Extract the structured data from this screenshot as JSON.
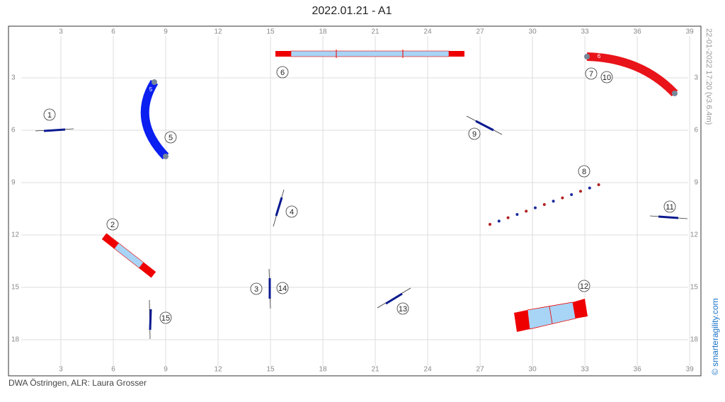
{
  "header": {
    "title": "2022.01.21 - A1"
  },
  "footer": {
    "text": "DWA Östringen, ALR: Laura Grosser"
  },
  "side": {
    "timestamp": "22-01-2022 17:20  (v3.6.4m)",
    "credit": "© smarteragility.com"
  },
  "grid": {
    "xticks": [
      3,
      6,
      9,
      12,
      15,
      18,
      21,
      24,
      27,
      30,
      33,
      36,
      39
    ],
    "yticks": [
      3,
      6,
      9,
      12,
      15,
      18
    ]
  },
  "obstacles": [
    {
      "label": "1"
    },
    {
      "label": "2"
    },
    {
      "label": "3"
    },
    {
      "label": "4"
    },
    {
      "label": "5"
    },
    {
      "label": "6"
    },
    {
      "label": "7"
    },
    {
      "label": "8"
    },
    {
      "label": "9"
    },
    {
      "label": "10"
    },
    {
      "label": "11"
    },
    {
      "label": "12"
    },
    {
      "label": "13"
    },
    {
      "label": "14"
    },
    {
      "label": "15"
    }
  ],
  "tunnels": [
    {
      "label": "5"
    },
    {
      "label": "6"
    }
  ]
}
